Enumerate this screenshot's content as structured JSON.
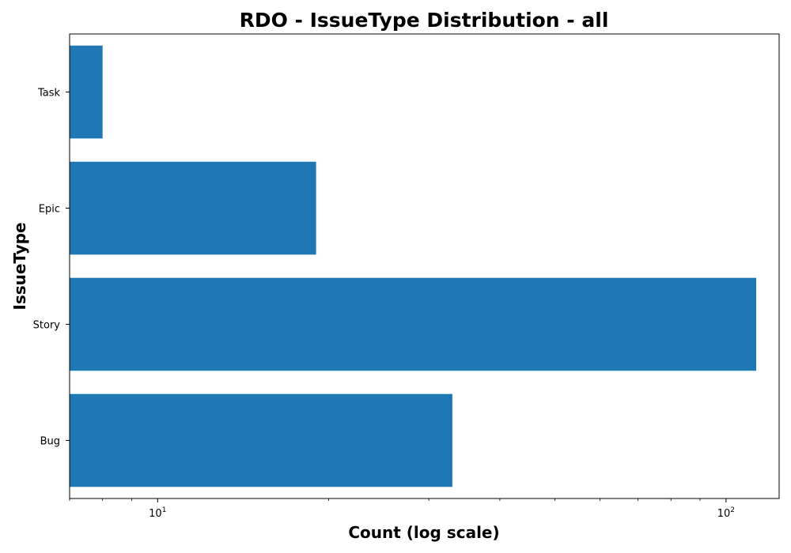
{
  "chart_data": {
    "type": "bar",
    "orientation": "horizontal",
    "title": "RDO - IssueType Distribution - all",
    "xlabel": "Count (log scale)",
    "ylabel": "IssueType",
    "x_scale": "log",
    "xlim": [
      7.0,
      124.0
    ],
    "x_ticks_major": [
      10,
      100
    ],
    "x_tick_labels": [
      "10^1",
      "10^2"
    ],
    "categories": [
      "Bug",
      "Story",
      "Epic",
      "Task"
    ],
    "values": [
      33,
      113,
      19,
      8
    ],
    "bar_color": "#1f77b4",
    "grid": false,
    "legend": "none"
  }
}
